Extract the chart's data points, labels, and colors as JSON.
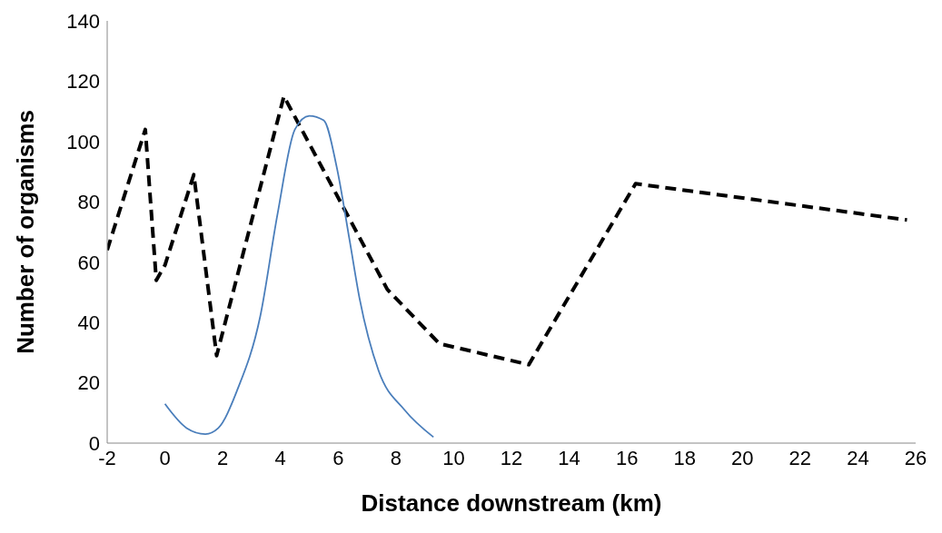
{
  "chart_data": {
    "type": "line",
    "xlabel": "Distance downstream (km)",
    "ylabel": "Number of organisms",
    "xlim": [
      -2,
      26
    ],
    "xticks": [
      -2,
      0,
      2,
      4,
      6,
      8,
      10,
      12,
      14,
      16,
      18,
      20,
      22,
      24,
      26
    ],
    "ylim": [
      0,
      140
    ],
    "yticks": [
      0,
      20,
      40,
      60,
      80,
      100,
      120,
      140
    ],
    "grid": false,
    "marker": "none",
    "series": [
      {
        "color": "#000000",
        "line_style": "dashed",
        "x": [
          -2,
          -0.68,
          -0.3,
          0,
          1,
          1.79,
          4.12,
          7.7,
          9.5,
          12.6,
          16.3,
          25.7
        ],
        "values": [
          64,
          104,
          54,
          59,
          89,
          29,
          115,
          51,
          33,
          26,
          86,
          74
        ]
      },
      {
        "color": "#4a7ebb",
        "line_style": "solid",
        "x": [
          0,
          0.75,
          1.4,
          1.85,
          2.5,
          3.3,
          3.9,
          4.5,
          5,
          5.5,
          5.95,
          6.4,
          6.74,
          7.4,
          8.3,
          9.3
        ],
        "values": [
          13,
          5,
          3,
          5,
          17.5,
          42,
          76,
          104,
          108.5,
          107,
          91.5,
          67,
          48,
          24,
          11,
          2
        ]
      }
    ]
  }
}
